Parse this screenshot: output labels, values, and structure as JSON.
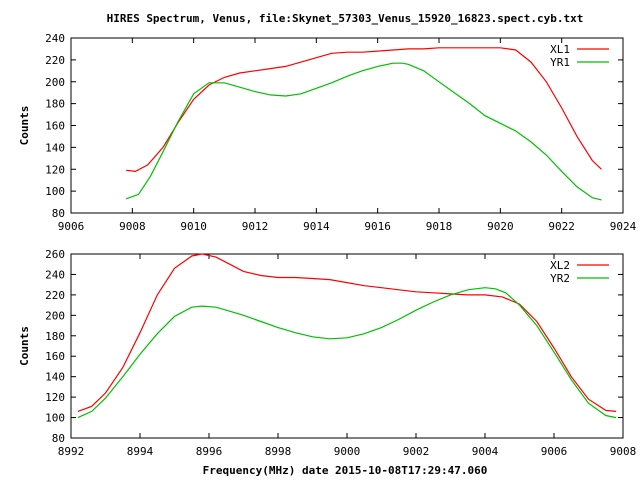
{
  "title": "HIRES Spectrum, Venus, file:Skynet_57303_Venus_15920_16823.spect.cyb.txt",
  "xlabel": "Frequency(MHz) date 2015-10-08T17:29:47.060",
  "chart_data": [
    {
      "type": "line",
      "ylabel": "Counts",
      "xlim": [
        9006,
        9024
      ],
      "ylim": [
        80,
        240
      ],
      "xticks": [
        "9006",
        "9008",
        "9010",
        "9012",
        "9014",
        "9016",
        "9018",
        "9020",
        "9022",
        "9024"
      ],
      "yticks": [
        "80",
        "100",
        "120",
        "140",
        "160",
        "180",
        "200",
        "220",
        "240"
      ],
      "series": [
        {
          "name": "XL1",
          "color": "#ff0000",
          "x": [
            9007.8,
            9008.1,
            9008.5,
            9009.0,
            9009.5,
            9010.0,
            9010.5,
            9011.0,
            9011.5,
            9012.0,
            9012.5,
            9013.0,
            9013.5,
            9014.0,
            9014.5,
            9015.0,
            9015.5,
            9016.0,
            9016.5,
            9017.0,
            9017.5,
            9018.0,
            9018.5,
            9019.0,
            9019.5,
            9020.0,
            9020.5,
            9021.0,
            9021.5,
            9022.0,
            9022.5,
            9023.0,
            9023.3
          ],
          "y": [
            119,
            118,
            124,
            140,
            163,
            184,
            197,
            204,
            208,
            210,
            212,
            214,
            218,
            222,
            226,
            227,
            227,
            228,
            229,
            230,
            230,
            231,
            231,
            231,
            231,
            231,
            229,
            218,
            200,
            176,
            150,
            128,
            120
          ]
        },
        {
          "name": "YR1",
          "color": "#00c000",
          "x": [
            9007.8,
            9008.2,
            9008.6,
            9009.0,
            9009.5,
            9010.0,
            9010.5,
            9011.0,
            9011.5,
            9012.0,
            9012.5,
            9013.0,
            9013.5,
            9014.0,
            9014.5,
            9015.0,
            9015.5,
            9016.0,
            9016.5,
            9016.8,
            9017.0,
            9017.5,
            9018.0,
            9018.5,
            9019.0,
            9019.5,
            9020.0,
            9020.5,
            9021.0,
            9021.5,
            9022.0,
            9022.5,
            9023.0,
            9023.3
          ],
          "y": [
            93,
            97,
            114,
            136,
            164,
            189,
            199,
            199,
            195,
            191,
            188,
            187,
            189,
            194,
            199,
            205,
            210,
            214,
            217,
            217,
            216,
            210,
            200,
            190,
            180,
            169,
            162,
            155,
            145,
            133,
            118,
            104,
            94,
            92
          ]
        }
      ],
      "legend": "top-right",
      "grid": false
    },
    {
      "type": "line",
      "ylabel": "Counts",
      "xlim": [
        8992,
        9008
      ],
      "ylim": [
        80,
        260
      ],
      "xticks": [
        "8992",
        "8994",
        "8996",
        "8998",
        "9000",
        "9002",
        "9004",
        "9006",
        "9008"
      ],
      "yticks": [
        "80",
        "100",
        "120",
        "140",
        "160",
        "180",
        "200",
        "220",
        "240",
        "260"
      ],
      "series": [
        {
          "name": "XL2",
          "color": "#ff0000",
          "x": [
            8992.2,
            8992.6,
            8993.0,
            8993.5,
            8994.0,
            8994.5,
            8995.0,
            8995.5,
            8995.8,
            8996.2,
            8996.6,
            8997.0,
            8997.5,
            8998.0,
            8998.5,
            8999.0,
            8999.5,
            9000.0,
            9000.5,
            9001.0,
            9001.5,
            9002.0,
            9002.5,
            9003.0,
            9003.5,
            9004.0,
            9004.5,
            9005.0,
            9005.5,
            9006.0,
            9006.5,
            9007.0,
            9007.5,
            9007.8
          ],
          "y": [
            106,
            111,
            124,
            149,
            183,
            220,
            246,
            258,
            260,
            257,
            250,
            243,
            239,
            237,
            237,
            236,
            235,
            232,
            229,
            227,
            225,
            223,
            222,
            221,
            220,
            220,
            218,
            211,
            194,
            168,
            140,
            118,
            107,
            106
          ]
        },
        {
          "name": "YR2",
          "color": "#00c000",
          "x": [
            8992.2,
            8992.6,
            8993.0,
            8993.5,
            8994.0,
            8994.5,
            8995.0,
            8995.5,
            8995.8,
            8996.2,
            8996.6,
            8997.0,
            8997.5,
            8998.0,
            8998.5,
            8999.0,
            8999.5,
            9000.0,
            9000.5,
            9001.0,
            9001.5,
            9002.0,
            9002.5,
            9003.0,
            9003.5,
            9004.0,
            9004.3,
            9004.6,
            9005.0,
            9005.5,
            9006.0,
            9006.5,
            9007.0,
            9007.5,
            9007.8
          ],
          "y": [
            100,
            106,
            119,
            140,
            162,
            182,
            199,
            208,
            209,
            208,
            204,
            200,
            194,
            188,
            183,
            179,
            177,
            178,
            182,
            188,
            196,
            205,
            213,
            220,
            225,
            227,
            226,
            222,
            210,
            190,
            164,
            137,
            114,
            102,
            100
          ]
        }
      ],
      "legend": "top-right",
      "grid": false
    }
  ]
}
